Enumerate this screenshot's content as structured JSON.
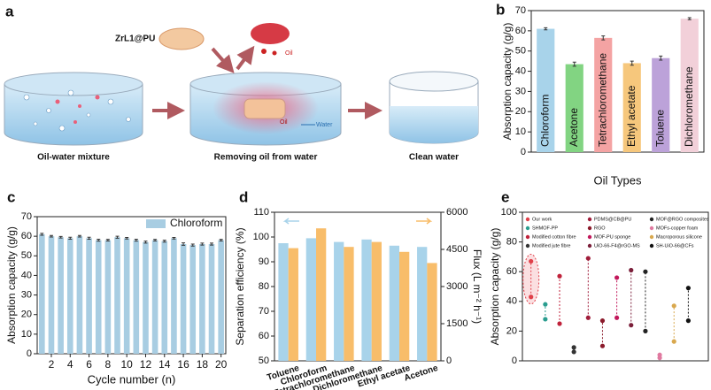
{
  "diagram": {
    "label": "a",
    "material": "ZrL1@PU",
    "oil": "Oil",
    "sponge_oil": "Oil",
    "water": "Water",
    "steps": [
      "Oil-water mixture",
      "Removing oil from water",
      "Clean water"
    ]
  },
  "chart_data": [
    {
      "type": "bar",
      "label": "b",
      "ylabel": "Absorption capacity (g/g)",
      "xlabel": "Oil Types",
      "categories": [
        "Chloroform",
        "Acetone",
        "Tetrachloromethane",
        "Ethyl acetate",
        "Toluene",
        "Dichloromethane"
      ],
      "values": [
        61,
        43.5,
        56.5,
        44,
        46.5,
        66
      ],
      "errors": [
        0.5,
        1,
        1,
        1,
        1,
        0.5
      ],
      "colors": [
        "#a8d3ea",
        "#82d482",
        "#f4a3a3",
        "#f6c77c",
        "#bca2d9",
        "#f2d0d9"
      ],
      "category_labels": "inside",
      "ylim": [
        0,
        70
      ],
      "yticks": [
        0,
        10,
        20,
        30,
        40,
        50,
        60,
        70
      ]
    },
    {
      "type": "bar",
      "label": "c",
      "ylabel": "Absorption capacity (g/g)",
      "xlabel": "Cycle number (n)",
      "x": [
        1,
        2,
        3,
        4,
        5,
        6,
        7,
        8,
        9,
        10,
        11,
        12,
        13,
        14,
        15,
        16,
        17,
        18,
        19,
        20
      ],
      "series": [
        {
          "name": "Chloroform",
          "color": "#a8cde2",
          "values": [
            61,
            60,
            59.5,
            59,
            60,
            59,
            58,
            58,
            59.5,
            59,
            58,
            57,
            58,
            57.5,
            59,
            56,
            55.5,
            56,
            56,
            58
          ],
          "errors": [
            0.5,
            0.4,
            0.4,
            0.5,
            0.4,
            0.5,
            0.5,
            0.4,
            0.5,
            0.4,
            0.5,
            0.5,
            0.4,
            0.5,
            0.4,
            0.6,
            0.5,
            0.5,
            0.5,
            0.4
          ]
        }
      ],
      "legend": "upper right",
      "xlim": [
        0.5,
        20.5
      ],
      "xticks": [
        2,
        4,
        6,
        8,
        10,
        12,
        14,
        16,
        18,
        20
      ],
      "ylim": [
        0,
        70
      ],
      "yticks": [
        0,
        10,
        20,
        30,
        40,
        50,
        60,
        70
      ]
    },
    {
      "type": "bar",
      "label": "d",
      "ylabel": "Separation efficiency (%)",
      "y2label": "Flux (L m⁻² h⁻¹)",
      "categories": [
        "Toluene",
        "Chloroform",
        "Tetrachloromethane",
        "Dichloromethane",
        "Ethyl acetate",
        "Acetone"
      ],
      "series": [
        {
          "color": "#a8d3ea",
          "values": [
            97.5,
            99.5,
            98,
            99,
            96.5,
            96
          ]
        },
        {
          "color": "#f8bd6a",
          "axis": "y2",
          "values": [
            4550,
            5350,
            4600,
            4800,
            4400,
            3950
          ]
        }
      ],
      "category_labels": "rotated",
      "ylim": [
        50,
        110
      ],
      "yticks": [
        50,
        60,
        70,
        80,
        90,
        100,
        110
      ],
      "y2lim": [
        0,
        6000
      ],
      "y2ticks": [
        0,
        1500,
        3000,
        4500,
        6000
      ]
    },
    {
      "type": "range",
      "label": "e",
      "ylabel": "Absorption capacity (g/g)",
      "series": [
        {
          "name": "Our work",
          "color": "#e0404a",
          "values": [
            43,
            67
          ]
        },
        {
          "name": "SHMOF-PP",
          "color": "#2a9d8f",
          "values": [
            28,
            38
          ]
        },
        {
          "name": "Modified cotton fibre",
          "color": "#c0223b",
          "values": [
            25,
            57
          ]
        },
        {
          "name": "Modified jute fibre",
          "color": "#333333",
          "values": [
            6,
            9
          ]
        },
        {
          "name": "PDMS@CB@PU",
          "color": "#a01c3a",
          "values": [
            29,
            69
          ]
        },
        {
          "name": "RGO",
          "color": "#8b1a2b",
          "values": [
            10,
            27
          ]
        },
        {
          "name": "MOF-PU sponge",
          "color": "#c2185b",
          "values": [
            29,
            56
          ]
        },
        {
          "name": "UiO-66-F4@rGO-MS",
          "color": "#7b1f3a",
          "values": [
            24,
            61
          ]
        },
        {
          "name": "MOF@RGO composites",
          "color": "#222222",
          "values": [
            20,
            60
          ]
        },
        {
          "name": "MOFs-copper foam",
          "color": "#e07aa0",
          "values": [
            2,
            4
          ]
        },
        {
          "name": "Macroporous silicone",
          "color": "#d9a84e",
          "values": [
            13,
            37
          ]
        },
        {
          "name": "SH-UiO-66@CFs",
          "color": "#111111",
          "values": [
            27,
            49
          ]
        }
      ],
      "ylim": [
        0,
        100
      ],
      "yticks": [
        0,
        20,
        40,
        60,
        80,
        100
      ]
    }
  ]
}
